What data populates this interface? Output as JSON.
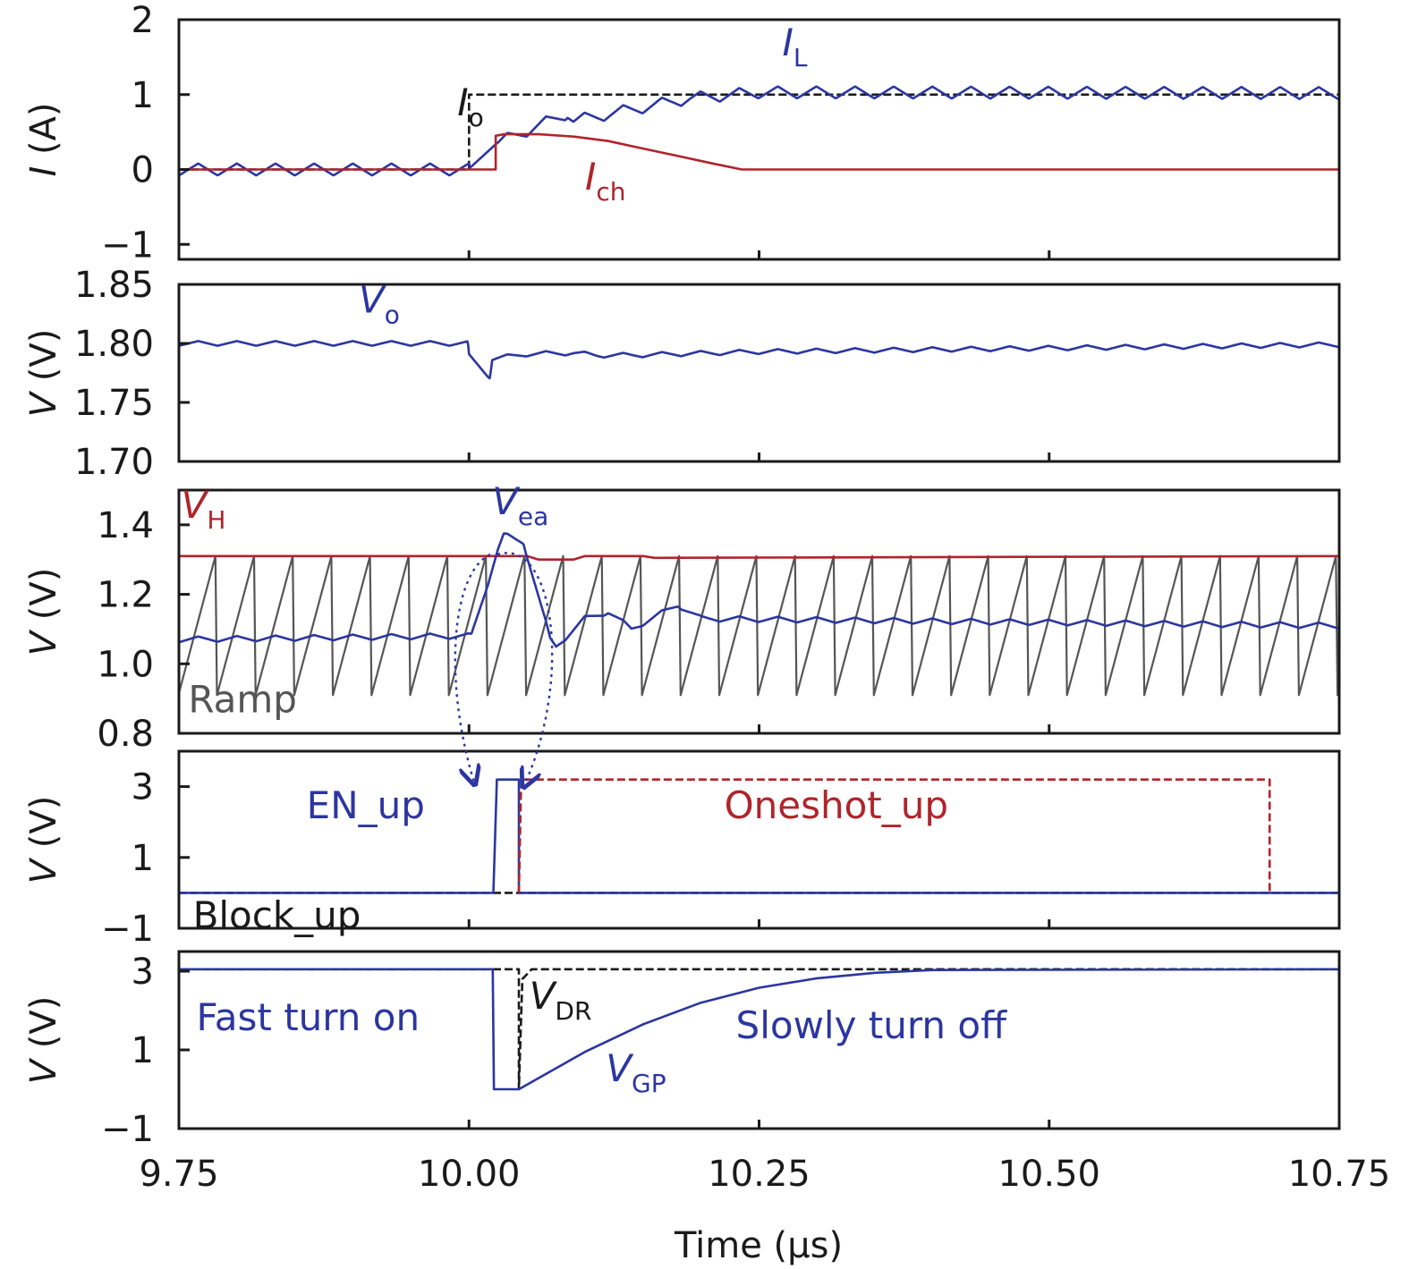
{
  "colors": {
    "blue": "#2b36a0",
    "red": "#b0242b",
    "black": "#1a1a1a",
    "gray": "#555555"
  },
  "chart_data": {
    "type": "line",
    "xlabel": "Time (μs)",
    "xlim": [
      9.75,
      10.75
    ],
    "xticks": [
      "9.75",
      "10.00",
      "10.25",
      "10.50",
      "10.75"
    ],
    "xtick_values": [
      9.75,
      10.0,
      10.25,
      10.5,
      10.75
    ],
    "panels": [
      {
        "ylabel": {
          "var": "I",
          "unit": " (A)"
        },
        "ylim": [
          -1.2,
          2
        ],
        "yticks": [
          "2",
          "1",
          "0",
          "−1"
        ],
        "ytick_values": [
          2,
          1,
          0,
          -1
        ],
        "series": [
          {
            "name": "I_o",
            "color": "#1a1a1a",
            "dashed": true,
            "x": [
              9.75,
              10.0,
              10.0,
              10.75
            ],
            "y": [
              0,
              0,
              1,
              1
            ]
          },
          {
            "name": "I_L",
            "color": "#2b36a0",
            "dashed": false,
            "generator": "triangle",
            "period": 0.0333,
            "x": [
              9.75,
              9.9993,
              10.024,
              10.085,
              10.09,
              10.19,
              10.25,
              10.75
            ],
            "y": [
              0,
              0,
              0.35,
              0.75,
              0.65,
              0.95,
              1.03,
              1.02
            ],
            "amplitude": 0.08
          },
          {
            "name": "I_ch",
            "color": "#b0242b",
            "dashed": false,
            "x": [
              9.75,
              10.023,
              10.023,
              10.03,
              10.06,
              10.09,
              10.12,
              10.15,
              10.18,
              10.21,
              10.235,
              10.75
            ],
            "y": [
              0,
              0,
              0.45,
              0.47,
              0.47,
              0.44,
              0.38,
              0.28,
              0.18,
              0.08,
              0.0,
              0.0
            ]
          }
        ],
        "labels": [
          {
            "text": "I",
            "sub": "o",
            "x": 9.99,
            "y": 0.72,
            "color": "#1a1a1a"
          },
          {
            "text": "I",
            "sub": "L",
            "x": 10.27,
            "y": 1.52,
            "color": "#2b36a0"
          },
          {
            "text": "I",
            "sub": "ch",
            "x": 10.1,
            "y": -0.27,
            "color": "#b0242b"
          }
        ]
      },
      {
        "ylabel": {
          "var": "V",
          "unit": " (V)"
        },
        "ylim": [
          1.7,
          1.85
        ],
        "yticks": [
          "1.85",
          "1.80",
          "1.75",
          "1.70"
        ],
        "ytick_values": [
          1.85,
          1.8,
          1.75,
          1.7
        ],
        "series": [
          {
            "name": "V_o",
            "color": "#2b36a0",
            "dashed": false,
            "generator": "triangle",
            "period": 0.0333,
            "amplitude": 0.002,
            "x": [
              9.75,
              9.999,
              10.0,
              10.018,
              10.02,
              10.05,
              10.09,
              10.11,
              10.14,
              10.25,
              10.75
            ],
            "y": [
              1.8,
              1.8,
              1.789,
              1.772,
              1.787,
              1.791,
              1.792,
              1.79,
              1.79,
              1.793,
              1.799
            ]
          }
        ],
        "labels": [
          {
            "text": "V",
            "sub": "o",
            "x": 9.905,
            "y": 1.826,
            "color": "#2b36a0"
          }
        ]
      },
      {
        "ylabel": {
          "var": "V",
          "unit": " (V)"
        },
        "ylim": [
          0.8,
          1.5
        ],
        "yticks": [
          "1.4",
          "1.2",
          "1.0",
          "0.8"
        ],
        "ytick_values": [
          1.4,
          1.2,
          1.0,
          0.8
        ],
        "series": [
          {
            "name": "Ramp",
            "color": "#555555",
            "dashed": false,
            "generator": "sawtooth",
            "period": 0.0333,
            "phase": 9.7495,
            "low": 0.91,
            "high": 1.31
          },
          {
            "name": "V_H",
            "color": "#b0242b",
            "dashed": false,
            "x": [
              9.75,
              10.03,
              10.05,
              10.06,
              10.09,
              10.1,
              10.15,
              10.16,
              10.75
            ],
            "y": [
              1.31,
              1.31,
              1.31,
              1.3,
              1.3,
              1.31,
              1.31,
              1.305,
              1.31
            ]
          },
          {
            "name": "V_ea",
            "color": "#2b36a0",
            "dashed": false,
            "generator": "triangle",
            "period": 0.0333,
            "amplitude": 0.008,
            "x": [
              9.75,
              9.99,
              10.002,
              10.015,
              10.025,
              10.03,
              10.047,
              10.07,
              10.075,
              10.1,
              10.12,
              10.14,
              10.18,
              10.2,
              10.75
            ],
            "y": [
              1.07,
              1.08,
              1.08,
              1.22,
              1.33,
              1.37,
              1.35,
              1.07,
              1.05,
              1.13,
              1.15,
              1.1,
              1.17,
              1.13,
              1.11
            ]
          }
        ],
        "labels": [
          {
            "text": "V",
            "sub": "H",
            "x": 9.752,
            "y": 1.42,
            "color": "#b0242b"
          },
          {
            "text": "V",
            "sub": "ea",
            "x": 10.02,
            "y": 1.43,
            "color": "#2b36a0"
          },
          {
            "text": "Ramp",
            "sub": "",
            "x": 9.758,
            "y": 0.86,
            "color": "#555555",
            "upright": true
          }
        ]
      },
      {
        "ylabel": {
          "var": "V",
          "unit": " (V)"
        },
        "ylim": [
          -1,
          4
        ],
        "yticks": [
          "3",
          "1",
          "−1"
        ],
        "ytick_values": [
          3,
          1,
          -1
        ],
        "series": [
          {
            "name": "Block_up",
            "color": "#1a1a1a",
            "dashed": true,
            "x": [
              9.75,
              10.75
            ],
            "y": [
              0,
              0
            ]
          },
          {
            "name": "EN_up",
            "color": "#2b36a0",
            "dashed": false,
            "x": [
              9.75,
              10.021,
              10.024,
              10.043,
              10.043,
              10.75
            ],
            "y": [
              0,
              0,
              3.2,
              3.2,
              0,
              0
            ]
          },
          {
            "name": "Oneshot_up",
            "color": "#b0242b",
            "dashed": true,
            "x": [
              10.043,
              10.045,
              10.69,
              10.69
            ],
            "y": [
              0,
              3.2,
              3.2,
              0
            ]
          }
        ],
        "labels": [
          {
            "text": "EN_up",
            "sub": "",
            "x": 9.86,
            "y": 2.1,
            "color": "#2b36a0",
            "upright": true
          },
          {
            "text": "Oneshot_up",
            "sub": "",
            "x": 10.22,
            "y": 2.1,
            "color": "#b0242b",
            "upright": true
          },
          {
            "text": "Block_up",
            "sub": "",
            "x": 9.762,
            "y": -1.0,
            "color": "#1a1a1a",
            "upright": true
          }
        ]
      },
      {
        "ylabel": {
          "var": "V",
          "unit": " (V)"
        },
        "ylim": [
          -1,
          3.5
        ],
        "yticks": [
          "3",
          "1",
          "−1"
        ],
        "ytick_values": [
          3,
          1,
          -1
        ],
        "series": [
          {
            "name": "V_DR",
            "color": "#1a1a1a",
            "dashed": true,
            "x": [
              9.75,
              10.022,
              10.043,
              10.043,
              10.046,
              10.054,
              10.75
            ],
            "y": [
              3.05,
              3.05,
              3.05,
              0,
              2.8,
              3.05,
              3.05
            ]
          },
          {
            "name": "V_GP",
            "color": "#2b36a0",
            "dashed": false,
            "x": [
              9.75,
              10.0205,
              10.0215,
              10.043,
              10.1,
              10.15,
              10.2,
              10.25,
              10.3,
              10.35,
              10.4,
              10.75
            ],
            "y": [
              3.05,
              3.05,
              0,
              0,
              0.95,
              1.65,
              2.2,
              2.58,
              2.82,
              2.96,
              3.03,
              3.05
            ]
          }
        ],
        "labels": [
          {
            "text": "Fast turn on",
            "sub": "",
            "x": 9.765,
            "y": 1.5,
            "color": "#2b36a0",
            "upright": true
          },
          {
            "text": "V",
            "sub": "DR",
            "x": 10.052,
            "y": 2.05,
            "color": "#1a1a1a"
          },
          {
            "text": "V",
            "sub": "GP",
            "x": 10.118,
            "y": 0.2,
            "color": "#2b36a0"
          },
          {
            "text": "Slowly turn off",
            "sub": "",
            "x": 10.23,
            "y": 1.3,
            "color": "#2b36a0",
            "upright": true
          }
        ]
      }
    ]
  }
}
